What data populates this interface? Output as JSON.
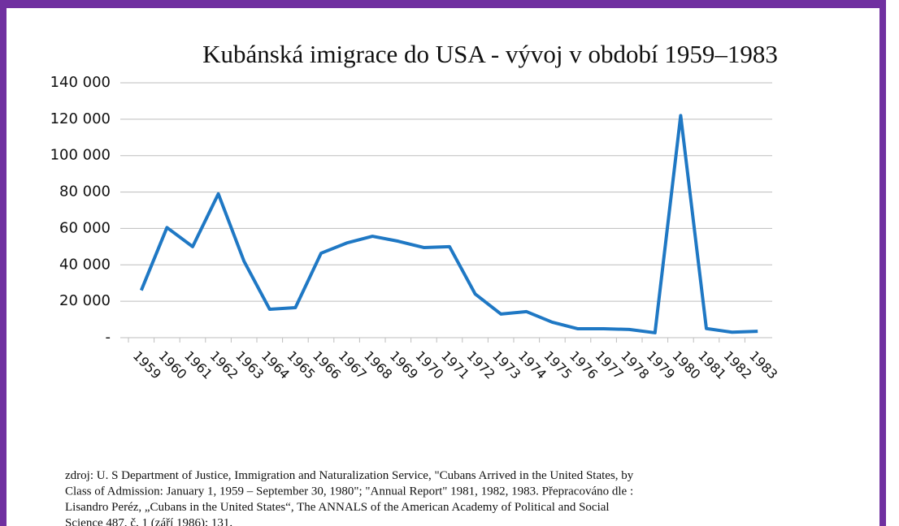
{
  "chart_data": {
    "type": "line",
    "title": "Kubánská imigrace do USA - vývoj v období 1959–1983",
    "categories": [
      "1959",
      "1960",
      "1961",
      "1962",
      "1963",
      "1964",
      "1965",
      "1966",
      "1967",
      "1968",
      "1969",
      "1970",
      "1971",
      "1972",
      "1973",
      "1974",
      "1975",
      "1976",
      "1977",
      "1978",
      "1979",
      "1980",
      "1981",
      "1982",
      "1983"
    ],
    "series": [
      {
        "name": "Kubánská imigrace",
        "color": "#1f78c4",
        "values": [
          26000,
          60500,
          50000,
          79000,
          42000,
          15600,
          16500,
          46400,
          52000,
          55700,
          53000,
          49500,
          50000,
          24000,
          13000,
          14300,
          8500,
          4900,
          4900,
          4500,
          2700,
          122000,
          5000,
          3000,
          3500
        ]
      }
    ],
    "ylim": [
      0,
      140000
    ],
    "yticks": [
      {
        "value": 0,
        "label": "-"
      },
      {
        "value": 20000,
        "label": "20 000"
      },
      {
        "value": 40000,
        "label": "40 000"
      },
      {
        "value": 60000,
        "label": "60 000"
      },
      {
        "value": 80000,
        "label": "80 000"
      },
      {
        "value": 100000,
        "label": "100 000"
      },
      {
        "value": 120000,
        "label": "120 000"
      },
      {
        "value": 140000,
        "label": "140 000"
      }
    ],
    "grid": true,
    "source": [
      "zdroj: U. S Department of Justice, Immigration and Naturalization Service, \"Cubans Arrived in the United States, by",
      "Class of Admission: January 1, 1959 – September 30, 1980\"; \"Annual Report\" 1981, 1982, 1983. Přepracováno dle :",
      "Lisandro Peréz, „Cubans in the United States“, The ANNALS of the American Academy of Political and Social",
      "Science 487, č. 1 (září 1986): 131."
    ]
  }
}
